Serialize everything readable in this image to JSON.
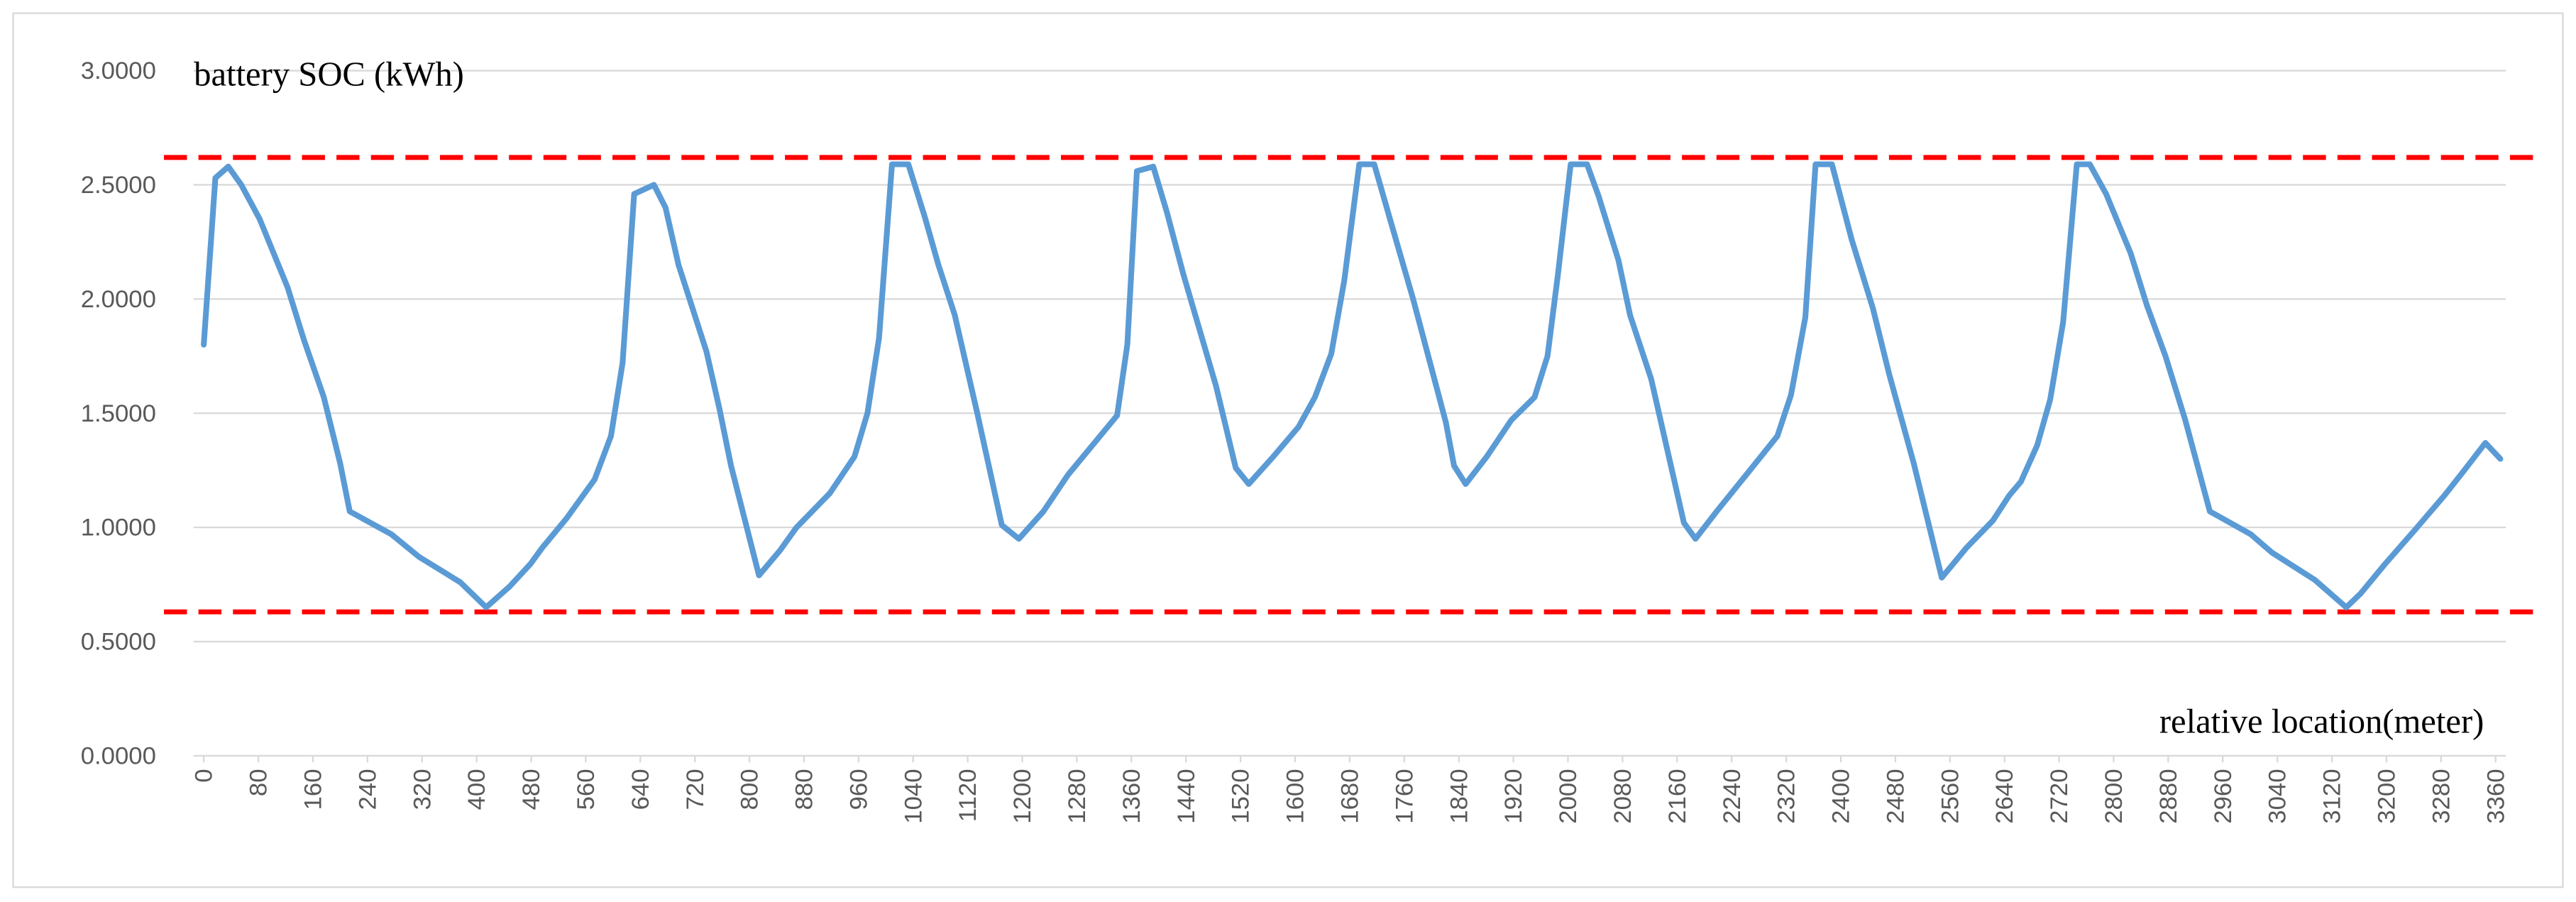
{
  "chart_data": {
    "type": "line",
    "title": "battery SOC (kWh)",
    "x_label": "relative location(meter)",
    "color": "#5b9bd5",
    "x": [
      0,
      17,
      36,
      55,
      82,
      123,
      147,
      176,
      200,
      214,
      275,
      316,
      376,
      414,
      448,
      479,
      496,
      532,
      573,
      597,
      614,
      631,
      660,
      677,
      696,
      737,
      756,
      773,
      814,
      845,
      869,
      918,
      954,
      973,
      990,
      1009,
      1033,
      1057,
      1077,
      1101,
      1134,
      1170,
      1195,
      1231,
      1267,
      1303,
      1339,
      1354,
      1368,
      1392,
      1412,
      1436,
      1484,
      1513,
      1532,
      1568,
      1605,
      1629,
      1653,
      1672,
      1694,
      1716,
      1742,
      1773,
      1797,
      1821,
      1833,
      1850,
      1881,
      1917,
      1951,
      1970,
      1985,
      2004,
      2028,
      2045,
      2074,
      2091,
      2122,
      2170,
      2187,
      2218,
      2264,
      2307,
      2327,
      2348,
      2363,
      2387,
      2416,
      2447,
      2471,
      2507,
      2548,
      2584,
      2623,
      2647,
      2664,
      2688,
      2707,
      2726,
      2746,
      2765,
      2789,
      2825,
      2849,
      2876,
      2905,
      2941,
      3001,
      3032,
      3095,
      3141,
      3162,
      3198,
      3242,
      3285,
      3314,
      3345,
      3367
    ],
    "values": [
      1.8,
      2.53,
      2.58,
      2.5,
      2.35,
      2.05,
      1.82,
      1.57,
      1.28,
      1.07,
      0.97,
      0.87,
      0.76,
      0.65,
      0.74,
      0.84,
      0.91,
      1.04,
      1.21,
      1.4,
      1.72,
      2.46,
      2.5,
      2.4,
      2.15,
      1.77,
      1.52,
      1.27,
      0.79,
      0.9,
      1.0,
      1.15,
      1.31,
      1.5,
      1.83,
      2.59,
      2.59,
      2.36,
      2.15,
      1.93,
      1.5,
      1.01,
      0.95,
      1.07,
      1.23,
      1.36,
      1.49,
      1.8,
      2.56,
      2.58,
      2.38,
      2.11,
      1.62,
      1.26,
      1.19,
      1.31,
      1.44,
      1.57,
      1.76,
      2.08,
      2.59,
      2.59,
      2.32,
      2.0,
      1.73,
      1.46,
      1.27,
      1.19,
      1.31,
      1.47,
      1.57,
      1.75,
      2.1,
      2.59,
      2.59,
      2.45,
      2.17,
      1.93,
      1.65,
      1.02,
      0.95,
      1.07,
      1.24,
      1.4,
      1.58,
      1.92,
      2.59,
      2.59,
      2.26,
      1.96,
      1.67,
      1.28,
      0.78,
      0.91,
      1.03,
      1.14,
      1.2,
      1.36,
      1.56,
      1.9,
      2.59,
      2.59,
      2.46,
      2.2,
      1.97,
      1.75,
      1.47,
      1.07,
      0.97,
      0.89,
      0.77,
      0.65,
      0.71,
      0.84,
      0.99,
      1.14,
      1.25,
      1.37,
      1.3
    ],
    "reference_lines": [
      {
        "value": 2.62,
        "color": "#ff0000"
      },
      {
        "value": 0.63,
        "color": "#ff0000"
      }
    ],
    "xlim": [
      -15,
      3375
    ],
    "xticks": [
      0,
      80,
      160,
      240,
      320,
      400,
      480,
      560,
      640,
      720,
      800,
      880,
      960,
      1040,
      1120,
      1200,
      1280,
      1360,
      1440,
      1520,
      1600,
      1680,
      1760,
      1840,
      1920,
      2000,
      2080,
      2160,
      2240,
      2320,
      2400,
      2480,
      2560,
      2640,
      2720,
      2800,
      2880,
      2960,
      3040,
      3120,
      3200,
      3280,
      3360
    ],
    "ylim": [
      0,
      3
    ],
    "yticks": [
      {
        "value": 0,
        "label": "0.0000"
      },
      {
        "value": 0.5,
        "label": "0.5000"
      },
      {
        "value": 1,
        "label": "1.0000"
      },
      {
        "value": 1.5,
        "label": "1.5000"
      },
      {
        "value": 2,
        "label": "2.0000"
      },
      {
        "value": 2.5,
        "label": "2.5000"
      },
      {
        "value": 3,
        "label": "3.0000"
      }
    ],
    "grid": true
  }
}
